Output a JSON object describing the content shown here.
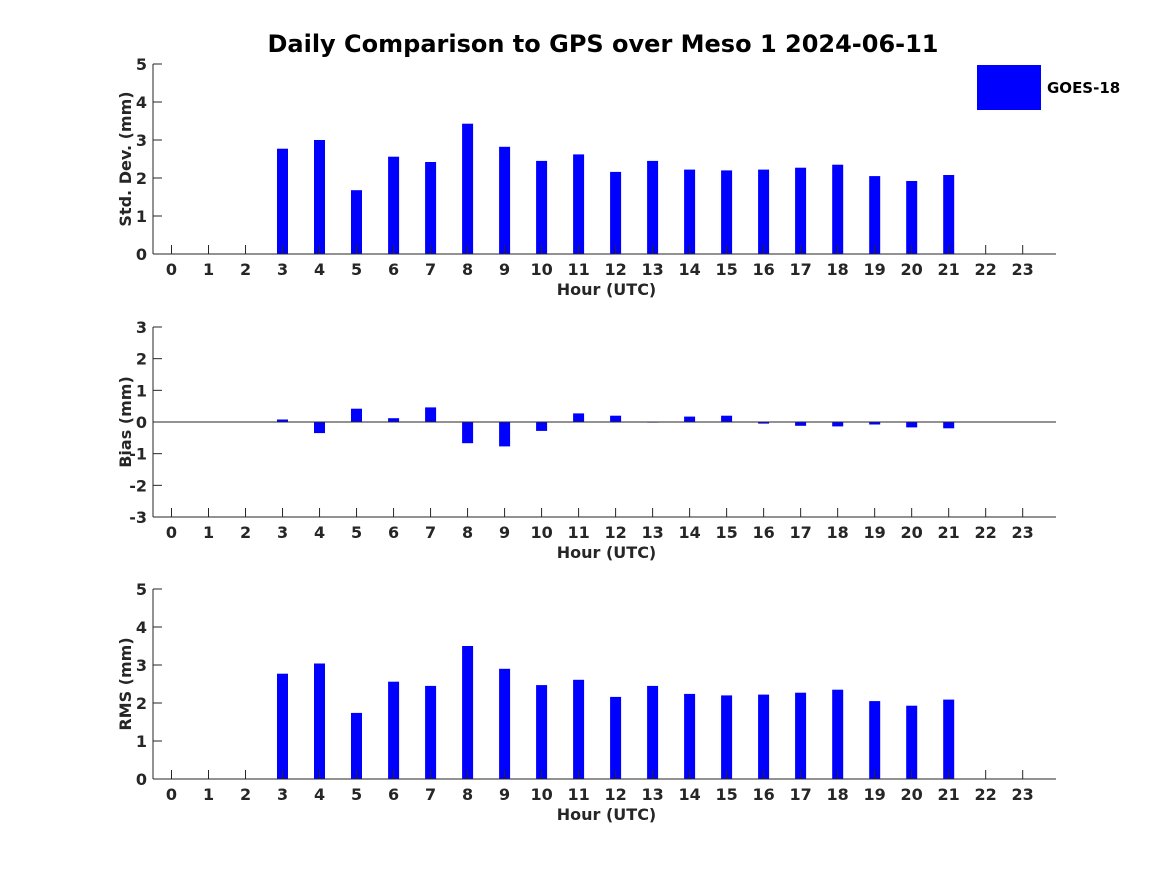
{
  "title": "Daily Comparison to GPS over Meso 1 2024-06-11",
  "legend": {
    "label": "GOES-18",
    "color": "#0000ff",
    "placement": "top-right"
  },
  "chart_data": [
    {
      "type": "bar",
      "series_name": "GOES-18",
      "xlabel": "Hour (UTC)",
      "ylabel": "Std. Dev. (mm)",
      "ylim": [
        0,
        5
      ],
      "yticks": [
        0,
        1,
        2,
        3,
        4,
        5
      ],
      "xlim": [
        -0.5,
        23.9
      ],
      "categories": [
        "0",
        "1",
        "2",
        "3",
        "4",
        "5",
        "6",
        "7",
        "8",
        "9",
        "10",
        "11",
        "12",
        "13",
        "14",
        "15",
        "16",
        "17",
        "18",
        "19",
        "20",
        "21",
        "22",
        "23"
      ],
      "values": [
        null,
        null,
        null,
        2.77,
        3.0,
        1.68,
        2.56,
        2.42,
        3.43,
        2.82,
        2.45,
        2.62,
        2.16,
        2.45,
        2.22,
        2.2,
        2.22,
        2.27,
        2.35,
        2.05,
        1.92,
        2.08,
        null,
        null
      ]
    },
    {
      "type": "bar",
      "series_name": "GOES-18",
      "xlabel": "Hour (UTC)",
      "ylabel": "Bias (mm)",
      "ylim": [
        -3,
        3
      ],
      "yticks": [
        -3,
        -2,
        -1,
        0,
        1,
        2,
        3
      ],
      "xlim": [
        -0.5,
        23.9
      ],
      "categories": [
        "0",
        "1",
        "2",
        "3",
        "4",
        "5",
        "6",
        "7",
        "8",
        "9",
        "10",
        "11",
        "12",
        "13",
        "14",
        "15",
        "16",
        "17",
        "18",
        "19",
        "20",
        "21",
        "22",
        "23"
      ],
      "values": [
        null,
        null,
        null,
        0.08,
        -0.35,
        0.42,
        0.12,
        0.46,
        -0.67,
        -0.77,
        -0.28,
        0.27,
        0.2,
        0.0,
        0.17,
        0.2,
        -0.05,
        -0.12,
        -0.14,
        -0.08,
        -0.17,
        -0.2,
        null,
        null
      ]
    },
    {
      "type": "bar",
      "series_name": "GOES-18",
      "xlabel": "Hour (UTC)",
      "ylabel": "RMS (mm)",
      "ylim": [
        0,
        5
      ],
      "yticks": [
        0,
        1,
        2,
        3,
        4,
        5
      ],
      "xlim": [
        -0.5,
        23.9
      ],
      "categories": [
        "0",
        "1",
        "2",
        "3",
        "4",
        "5",
        "6",
        "7",
        "8",
        "9",
        "10",
        "11",
        "12",
        "13",
        "14",
        "15",
        "16",
        "17",
        "18",
        "19",
        "20",
        "21",
        "22",
        "23"
      ],
      "values": [
        null,
        null,
        null,
        2.77,
        3.04,
        1.74,
        2.56,
        2.45,
        3.5,
        2.9,
        2.47,
        2.61,
        2.16,
        2.45,
        2.24,
        2.2,
        2.22,
        2.27,
        2.35,
        2.05,
        1.93,
        2.09,
        null,
        null
      ]
    }
  ]
}
